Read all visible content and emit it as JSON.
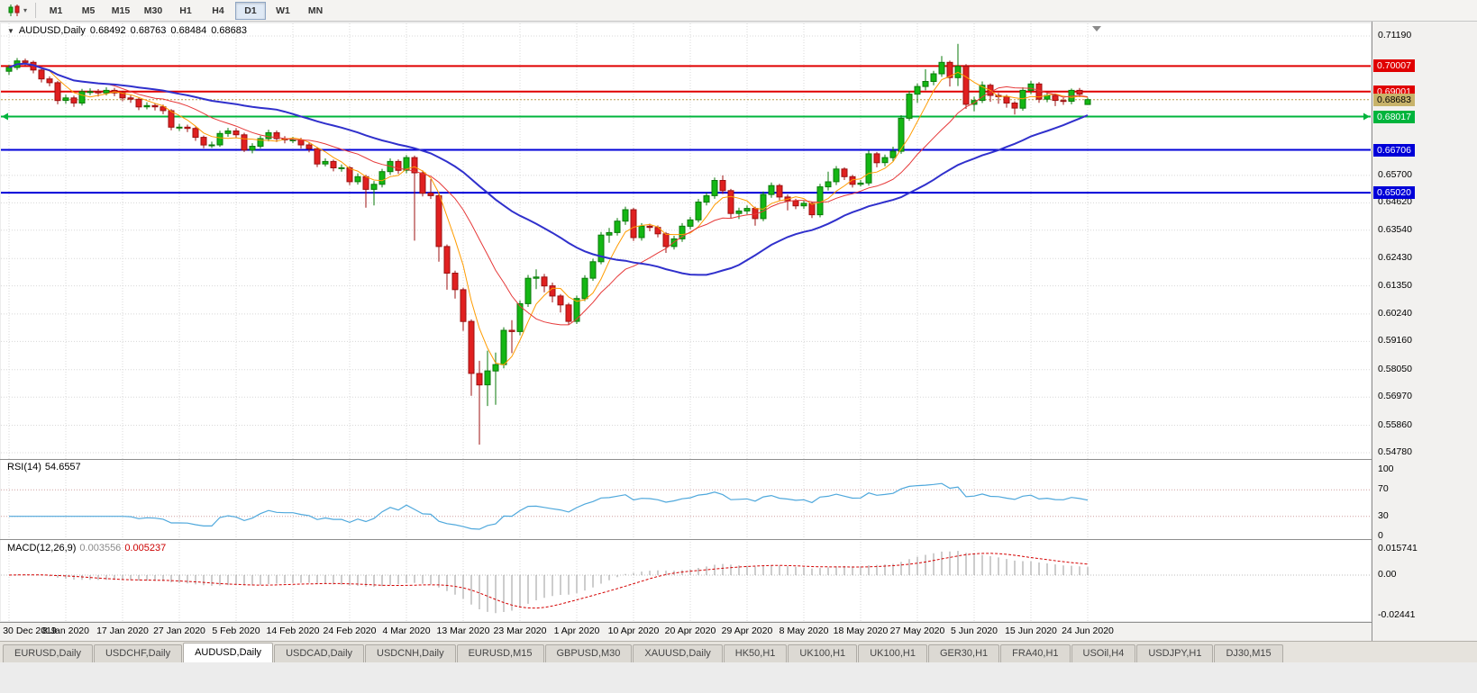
{
  "toolbar": {
    "timeframes": [
      "M1",
      "M5",
      "M15",
      "M30",
      "H1",
      "H4",
      "D1",
      "W1",
      "MN"
    ],
    "active_timeframe": "D1"
  },
  "chart": {
    "symbol": "AUDUSD,Daily",
    "open": "0.68492",
    "high": "0.68763",
    "low": "0.68484",
    "close": "0.68683"
  },
  "chart_data": {
    "type": "candlestick",
    "title": "AUDUSD,Daily",
    "y_range": [
      0.5478,
      0.7119
    ],
    "x_label_step": 7,
    "x_labels": [
      "30 Dec 2019",
      "8 Jan 2020",
      "17 Jan 2020",
      "27 Jan 2020",
      "5 Feb 2020",
      "14 Feb 2020",
      "24 Feb 2020",
      "4 Mar 2020",
      "13 Mar 2020",
      "23 Mar 2020",
      "1 Apr 2020",
      "10 Apr 2020",
      "20 Apr 2020",
      "29 Apr 2020",
      "8 May 2020",
      "18 May 2020",
      "27 May 2020",
      "5 Jun 2020",
      "15 Jun 2020",
      "24 Jun 2020"
    ],
    "y_axis_labels": [
      0.7119,
      0.657,
      0.6462,
      0.6354,
      0.6243,
      0.6135,
      0.6024,
      0.5916,
      0.5805,
      0.5697,
      0.5586,
      0.5478
    ],
    "colors": {
      "up": "#14b714",
      "up_border": "#0a7a0a",
      "down": "#e02020",
      "down_border": "#9c1010"
    },
    "candles": [
      [
        0.698,
        0.7005,
        0.6966,
        0.6995
      ],
      [
        0.6995,
        0.7032,
        0.6985,
        0.7021
      ],
      [
        0.7021,
        0.703,
        0.7,
        0.7015
      ],
      [
        0.7015,
        0.7022,
        0.6972,
        0.6985
      ],
      [
        0.6985,
        0.6993,
        0.6936,
        0.695
      ],
      [
        0.695,
        0.696,
        0.6921,
        0.6935
      ],
      [
        0.6935,
        0.6942,
        0.685,
        0.6865
      ],
      [
        0.6865,
        0.6888,
        0.6852,
        0.6875
      ],
      [
        0.6875,
        0.6884,
        0.684,
        0.6855
      ],
      [
        0.6855,
        0.6911,
        0.6845,
        0.69
      ],
      [
        0.69,
        0.6913,
        0.6886,
        0.69
      ],
      [
        0.69,
        0.691,
        0.6881,
        0.6895
      ],
      [
        0.6895,
        0.6917,
        0.6885,
        0.6905
      ],
      [
        0.6905,
        0.6915,
        0.6882,
        0.6895
      ],
      [
        0.6895,
        0.6903,
        0.6862,
        0.6875
      ],
      [
        0.6875,
        0.6885,
        0.6856,
        0.687
      ],
      [
        0.687,
        0.6877,
        0.6827,
        0.684
      ],
      [
        0.684,
        0.6858,
        0.683,
        0.6845
      ],
      [
        0.6845,
        0.6855,
        0.6826,
        0.684
      ],
      [
        0.684,
        0.6849,
        0.6811,
        0.6825
      ],
      [
        0.6825,
        0.6831,
        0.6748,
        0.676
      ],
      [
        0.676,
        0.6773,
        0.6745,
        0.676
      ],
      [
        0.676,
        0.677,
        0.6741,
        0.6755
      ],
      [
        0.6755,
        0.6762,
        0.6706,
        0.672
      ],
      [
        0.672,
        0.6727,
        0.6677,
        0.669
      ],
      [
        0.669,
        0.6703,
        0.6678,
        0.669
      ],
      [
        0.669,
        0.6746,
        0.6682,
        0.6735
      ],
      [
        0.6735,
        0.6757,
        0.6722,
        0.6745
      ],
      [
        0.6745,
        0.6756,
        0.6716,
        0.673
      ],
      [
        0.673,
        0.6738,
        0.6662,
        0.667
      ],
      [
        0.667,
        0.6697,
        0.6657,
        0.6685
      ],
      [
        0.6685,
        0.6726,
        0.6676,
        0.6715
      ],
      [
        0.6715,
        0.675,
        0.6704,
        0.6738
      ],
      [
        0.6738,
        0.6747,
        0.6702,
        0.6715
      ],
      [
        0.6715,
        0.6725,
        0.6696,
        0.671
      ],
      [
        0.671,
        0.6722,
        0.6697,
        0.671
      ],
      [
        0.671,
        0.6718,
        0.6676,
        0.669
      ],
      [
        0.669,
        0.6699,
        0.6661,
        0.6675
      ],
      [
        0.6675,
        0.6682,
        0.6603,
        0.6615
      ],
      [
        0.6615,
        0.6637,
        0.6605,
        0.6625
      ],
      [
        0.6625,
        0.6632,
        0.6586,
        0.66
      ],
      [
        0.66,
        0.6613,
        0.6585,
        0.66
      ],
      [
        0.66,
        0.6607,
        0.6532,
        0.6545
      ],
      [
        0.6545,
        0.6578,
        0.6534,
        0.6565
      ],
      [
        0.6565,
        0.6572,
        0.6443,
        0.6515
      ],
      [
        0.6515,
        0.6548,
        0.6452,
        0.6535
      ],
      [
        0.6535,
        0.6596,
        0.6523,
        0.6585
      ],
      [
        0.6585,
        0.6637,
        0.6572,
        0.6625
      ],
      [
        0.6625,
        0.6633,
        0.6576,
        0.659
      ],
      [
        0.659,
        0.665,
        0.6578,
        0.664
      ],
      [
        0.664,
        0.6648,
        0.6313,
        0.658
      ],
      [
        0.658,
        0.659,
        0.6487,
        0.65
      ],
      [
        0.65,
        0.6555,
        0.6477,
        0.649
      ],
      [
        0.649,
        0.6498,
        0.623,
        0.629
      ],
      [
        0.629,
        0.6298,
        0.612,
        0.6185
      ],
      [
        0.6185,
        0.6195,
        0.6085,
        0.612
      ],
      [
        0.612,
        0.6128,
        0.5958,
        0.5995
      ],
      [
        0.5995,
        0.6003,
        0.5702,
        0.579
      ],
      [
        0.579,
        0.584,
        0.551,
        0.5745
      ],
      [
        0.5745,
        0.588,
        0.5662,
        0.58
      ],
      [
        0.58,
        0.5872,
        0.5667,
        0.5825
      ],
      [
        0.5825,
        0.5972,
        0.581,
        0.596
      ],
      [
        0.596,
        0.6,
        0.587,
        0.5955
      ],
      [
        0.5955,
        0.6078,
        0.594,
        0.6065
      ],
      [
        0.6065,
        0.6178,
        0.6052,
        0.6165
      ],
      [
        0.6165,
        0.62,
        0.6122,
        0.617
      ],
      [
        0.617,
        0.6182,
        0.611,
        0.6135
      ],
      [
        0.6135,
        0.6148,
        0.607,
        0.6095
      ],
      [
        0.6095,
        0.6103,
        0.603,
        0.606
      ],
      [
        0.606,
        0.6068,
        0.5982,
        0.5995
      ],
      [
        0.5995,
        0.6097,
        0.5985,
        0.6085
      ],
      [
        0.6085,
        0.6177,
        0.6075,
        0.6165
      ],
      [
        0.6165,
        0.6242,
        0.6155,
        0.623
      ],
      [
        0.623,
        0.6347,
        0.622,
        0.6335
      ],
      [
        0.6335,
        0.6363,
        0.6305,
        0.6345
      ],
      [
        0.6345,
        0.6402,
        0.6333,
        0.639
      ],
      [
        0.639,
        0.6447,
        0.6375,
        0.6435
      ],
      [
        0.6435,
        0.6442,
        0.6312,
        0.6325
      ],
      [
        0.6325,
        0.6382,
        0.6313,
        0.637
      ],
      [
        0.637,
        0.638,
        0.635,
        0.6365
      ],
      [
        0.6365,
        0.6373,
        0.6326,
        0.634
      ],
      [
        0.634,
        0.6347,
        0.6265,
        0.629
      ],
      [
        0.629,
        0.6332,
        0.6278,
        0.632
      ],
      [
        0.632,
        0.6382,
        0.6308,
        0.637
      ],
      [
        0.637,
        0.6407,
        0.6358,
        0.6395
      ],
      [
        0.6395,
        0.6477,
        0.6385,
        0.6465
      ],
      [
        0.6465,
        0.6502,
        0.6452,
        0.649
      ],
      [
        0.649,
        0.6562,
        0.6478,
        0.655
      ],
      [
        0.655,
        0.657,
        0.6497,
        0.651
      ],
      [
        0.651,
        0.6517,
        0.6402,
        0.642
      ],
      [
        0.642,
        0.6443,
        0.6398,
        0.643
      ],
      [
        0.643,
        0.6452,
        0.6417,
        0.644
      ],
      [
        0.644,
        0.6447,
        0.6372,
        0.64
      ],
      [
        0.64,
        0.6507,
        0.639,
        0.6495
      ],
      [
        0.6495,
        0.6542,
        0.6482,
        0.653
      ],
      [
        0.653,
        0.6537,
        0.6472,
        0.6485
      ],
      [
        0.6485,
        0.6495,
        0.6432,
        0.647
      ],
      [
        0.647,
        0.6478,
        0.6437,
        0.645
      ],
      [
        0.645,
        0.6472,
        0.6438,
        0.646
      ],
      [
        0.646,
        0.6467,
        0.6402,
        0.6415
      ],
      [
        0.6415,
        0.6537,
        0.6405,
        0.6525
      ],
      [
        0.6525,
        0.6585,
        0.651,
        0.6545
      ],
      [
        0.6545,
        0.6607,
        0.6532,
        0.6595
      ],
      [
        0.6595,
        0.6602,
        0.6552,
        0.6565
      ],
      [
        0.6565,
        0.6572,
        0.6522,
        0.6535
      ],
      [
        0.6535,
        0.6552,
        0.6526,
        0.654
      ],
      [
        0.654,
        0.6667,
        0.653,
        0.6655
      ],
      [
        0.6655,
        0.6662,
        0.6602,
        0.662
      ],
      [
        0.662,
        0.6652,
        0.6606,
        0.664
      ],
      [
        0.664,
        0.6683,
        0.6626,
        0.6665
      ],
      [
        0.6665,
        0.6807,
        0.6655,
        0.6795
      ],
      [
        0.6795,
        0.6902,
        0.6785,
        0.689
      ],
      [
        0.689,
        0.6932,
        0.6855,
        0.692
      ],
      [
        0.692,
        0.6988,
        0.6905,
        0.694
      ],
      [
        0.694,
        0.6982,
        0.6925,
        0.697
      ],
      [
        0.697,
        0.704,
        0.6958,
        0.7015
      ],
      [
        0.7015,
        0.7022,
        0.692,
        0.6955
      ],
      [
        0.6955,
        0.7088,
        0.6922,
        0.7
      ],
      [
        0.7,
        0.7008,
        0.6832,
        0.685
      ],
      [
        0.685,
        0.688,
        0.6822,
        0.6865
      ],
      [
        0.6865,
        0.694,
        0.6855,
        0.6925
      ],
      [
        0.6925,
        0.6932,
        0.686,
        0.6885
      ],
      [
        0.6885,
        0.6895,
        0.6852,
        0.688
      ],
      [
        0.688,
        0.6888,
        0.6837,
        0.6855
      ],
      [
        0.6855,
        0.6862,
        0.681,
        0.6835
      ],
      [
        0.6835,
        0.6917,
        0.6825,
        0.6905
      ],
      [
        0.6905,
        0.6942,
        0.689,
        0.693
      ],
      [
        0.693,
        0.6938,
        0.6856,
        0.687
      ],
      [
        0.687,
        0.6897,
        0.6858,
        0.6885
      ],
      [
        0.6885,
        0.6892,
        0.6843,
        0.6865
      ],
      [
        0.6865,
        0.6876,
        0.6848,
        0.6862
      ],
      [
        0.6862,
        0.6912,
        0.685,
        0.6905
      ],
      [
        0.6905,
        0.6914,
        0.6878,
        0.689
      ],
      [
        0.68492,
        0.68763,
        0.68484,
        0.68683
      ]
    ],
    "moving_averages": [
      {
        "name": "ma-fast-orange",
        "period": 5,
        "color": "#ff9c00",
        "width": 1
      },
      {
        "name": "ma-mid-red",
        "period": 13,
        "color": "#e63939",
        "width": 1
      },
      {
        "name": "ma-slow-blue",
        "period": 34,
        "color": "#3030cc",
        "width": 2
      }
    ],
    "horizontal_lines": [
      {
        "price": 0.70007,
        "color": "#e00000",
        "arrows": false
      },
      {
        "price": 0.69001,
        "color": "#e00000",
        "arrows": false
      },
      {
        "price": 0.68017,
        "color": "#00b43c",
        "arrows": true
      },
      {
        "price": 0.66706,
        "color": "#0000d8",
        "arrows": false
      },
      {
        "price": 0.6502,
        "color": "#0000d8",
        "arrows": false
      }
    ],
    "current_price": {
      "value": "0.68683",
      "line_color": "#b89b4a",
      "badge_bg": "#c8b36a",
      "badge_text": "#000"
    },
    "rsi": {
      "label": "RSI(14)",
      "value": "54.6557",
      "period": 14,
      "levels": [
        100,
        70,
        30,
        0
      ],
      "line_color": "#4fa8dc",
      "level_color": "#cf9f9f"
    },
    "macd": {
      "label": "MACD(12,26,9)",
      "value_main": "0.003556",
      "value_signal": "0.005237",
      "fast": 12,
      "slow": 26,
      "signal": 9,
      "range": [
        -0.02441,
        0.015741
      ],
      "scale_labels": [
        "0.015741",
        "0.00",
        "-0.02441"
      ],
      "hist_color": "#9b9b9b",
      "signal_color": "#d40000"
    }
  },
  "tabs": {
    "items": [
      "EURUSD,Daily",
      "USDCHF,Daily",
      "AUDUSD,Daily",
      "USDCAD,Daily",
      "USDCNH,Daily",
      "EURUSD,M15",
      "GBPUSD,M30",
      "XAUUSD,Daily",
      "HK50,H1",
      "UK100,H1",
      "UK100,H1",
      "GER30,H1",
      "FRA40,H1",
      "USOil,H4",
      "USDJPY,H1",
      "DJ30,M15"
    ],
    "active_index": 2
  }
}
